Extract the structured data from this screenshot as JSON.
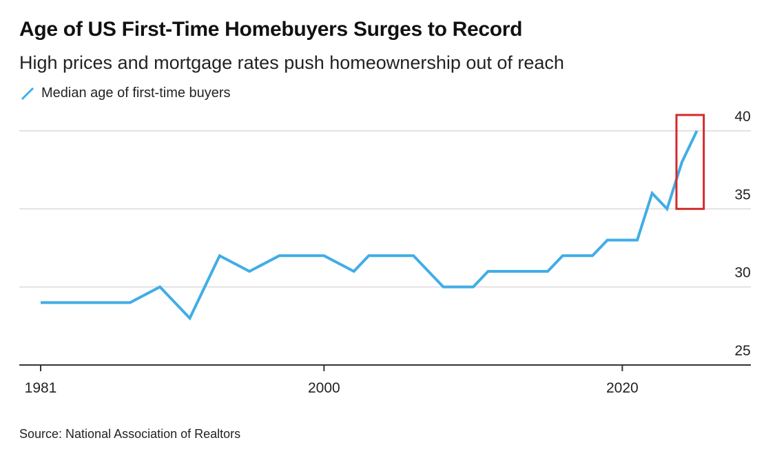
{
  "title": "Age of US First-Time Homebuyers Surges to Record",
  "subtitle": "High prices and mortgage rates push homeownership out of reach",
  "source": "Source: National Association of Realtors",
  "chart_data": {
    "type": "line",
    "title": "Age of US First-Time Homebuyers Surges to Record",
    "subtitle": "High prices and mortgage rates push homeownership out of reach",
    "xlabel": "",
    "ylabel": "",
    "xlim": [
      1981,
      2025
    ],
    "ylim": [
      25,
      40
    ],
    "x_ticks": [
      "1981",
      "2000",
      "2020"
    ],
    "y_ticks": [
      "25",
      "30",
      "35",
      "40"
    ],
    "y_axis_side": "right",
    "grid": "horizontal",
    "legend_position": "top-left",
    "highlight": {
      "description_color": "#d42a2a",
      "x_range": [
        2024,
        2025
      ],
      "y_range": [
        35,
        40
      ]
    },
    "series": [
      {
        "name": "Median age of first-time buyers",
        "color": "#41ade6",
        "x": [
          1981,
          1987,
          1989,
          1991,
          1993,
          1995,
          1997,
          2000,
          2002,
          2003,
          2006,
          2008,
          2010,
          2011,
          2015,
          2016,
          2018,
          2019,
          2021,
          2022,
          2023,
          2024,
          2025
        ],
        "y": [
          29,
          29,
          30,
          28,
          32,
          31,
          32,
          32,
          31,
          32,
          32,
          30,
          30,
          31,
          31,
          32,
          32,
          33,
          33,
          36,
          35,
          38,
          40
        ]
      }
    ]
  }
}
